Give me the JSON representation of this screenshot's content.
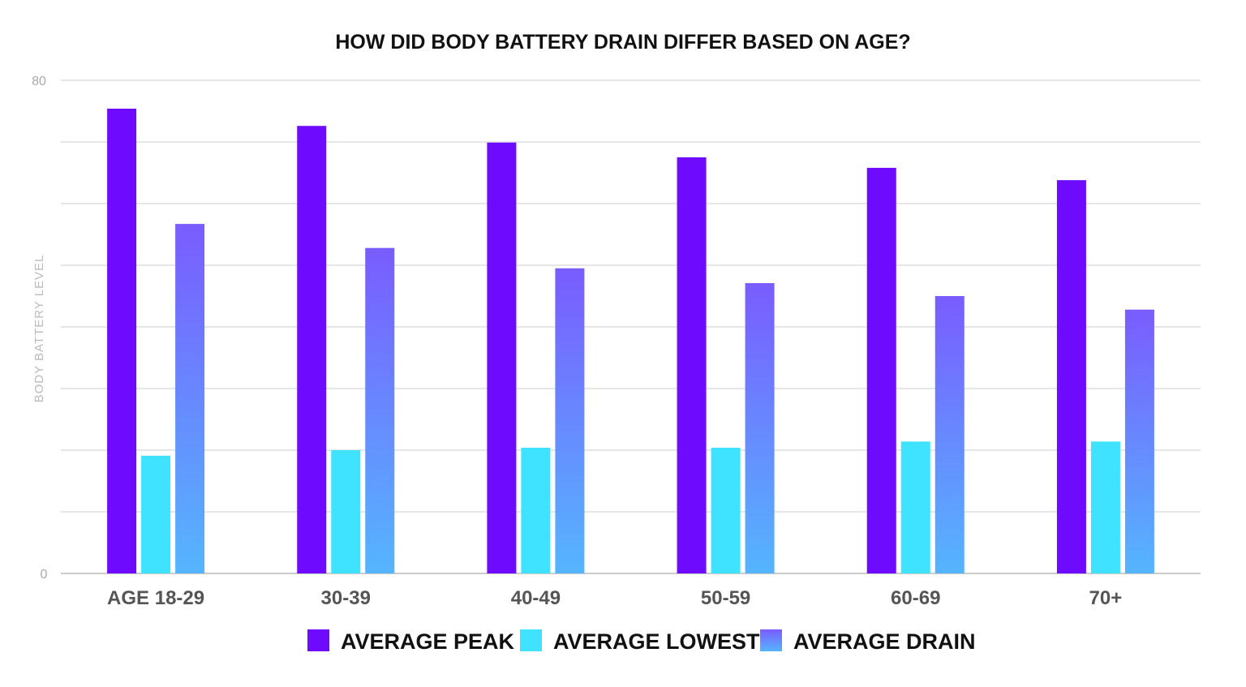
{
  "chart_data": {
    "type": "bar",
    "title": "HOW DID BODY BATTERY DRAIN DIFFER BASED ON AGE?",
    "xlabel": "",
    "ylabel": "BODY BATTERY LEVEL",
    "ylim": [
      0,
      80
    ],
    "y_tick_labels": [
      "0",
      "80"
    ],
    "gridlines_every": 10,
    "grid": true,
    "legend": "bottom",
    "categories": [
      "AGE 18-29",
      "30-39",
      "40-49",
      "50-59",
      "60-69",
      "70+"
    ],
    "series": [
      {
        "name": "AVERAGE PEAK",
        "color": "#6e0bff",
        "values": [
          75.4,
          72.6,
          69.9,
          67.5,
          65.8,
          63.8
        ]
      },
      {
        "name": "AVERAGE LOWEST",
        "color": "#40e3ff",
        "values": [
          19.1,
          20.0,
          20.4,
          20.4,
          21.4,
          21.4
        ]
      },
      {
        "name": "AVERAGE DRAIN",
        "color": "#7a5cff",
        "gradient_bottom": "#55b5ff",
        "values": [
          56.7,
          52.8,
          49.5,
          47.1,
          45.0,
          42.8
        ]
      }
    ]
  }
}
